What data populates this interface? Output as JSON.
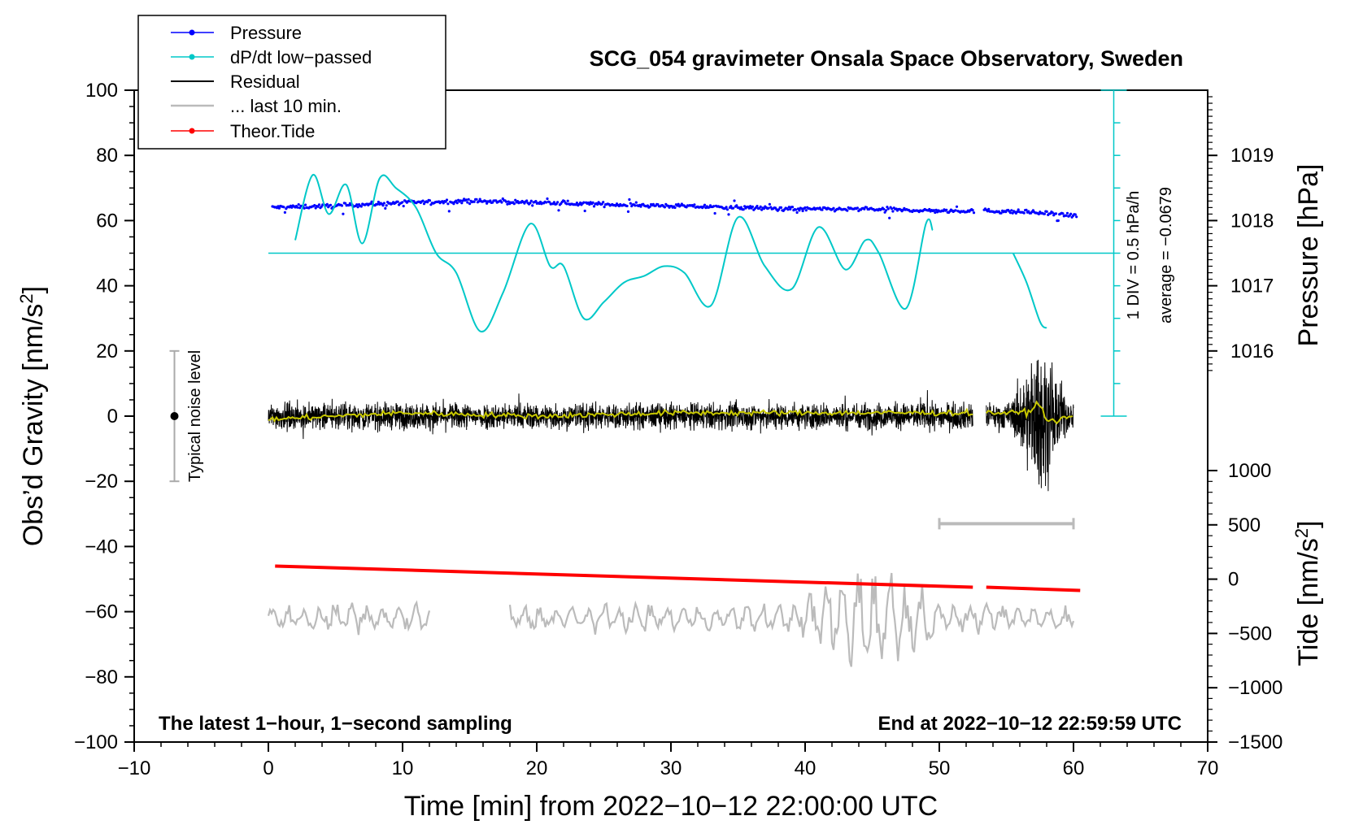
{
  "chart_data": {
    "type": "line",
    "title": "SCG_054 gravimeter Onsala Space Observatory, Sweden",
    "xlabel": "Time [min] from 2022−10−12 22:00:00 UTC",
    "ylabel_left": "Obs’d Gravity [nm/s2]",
    "ylabel_left_main": "Obs’d Gravity [nm/s",
    "ylabel_left_sup": "2",
    "ylabel_left_end": "]",
    "ylabel_right_pressure": "Pressure [hPa]",
    "ylabel_right_tide": "Tide [nm/s2]",
    "ylabel_right_tide_main": "Tide [nm/s",
    "ylabel_right_tide_sup": "2",
    "ylabel_right_tide_end": "]",
    "xlim": [
      -10,
      70
    ],
    "ylim": [
      -100,
      100
    ],
    "x_ticks": [
      "−10",
      "0",
      "10",
      "20",
      "30",
      "40",
      "50",
      "60",
      "70"
    ],
    "y_ticks": [
      "100",
      "80",
      "60",
      "40",
      "20",
      "0",
      "−20",
      "−40",
      "−60",
      "−80",
      "−100"
    ],
    "pressure_ticks": [
      "1019",
      "1018",
      "1017",
      "1016"
    ],
    "tide_ticks": [
      "1000",
      "500",
      "0",
      "−500",
      "−1000",
      "−1500"
    ],
    "legend": [
      {
        "label": "Pressure",
        "color": "#0000ff",
        "style": "line-dot"
      },
      {
        "label": "dP/dt low−passed",
        "color": "#00c8c8",
        "style": "line-dot"
      },
      {
        "label": "Residual",
        "color": "#000000",
        "style": "line"
      },
      {
        "label": "... last 10 min.",
        "color": "#bbbbbb",
        "style": "line"
      },
      {
        "label": "Theor.Tide",
        "color": "#ff0000",
        "style": "line-dot"
      }
    ],
    "annotations": {
      "bottom_left": "The latest 1−hour, 1−second sampling",
      "bottom_right": "End at 2022−10−12 22:59:59 UTC",
      "noise_label": "Typical noise level",
      "div_label": "1 DIV = 0.5 hPa/h",
      "average_label": "average = −0.0679"
    },
    "series": [
      {
        "name": "Pressure",
        "unit": "gravity-axis units",
        "x": [
          0,
          5,
          10,
          15,
          20,
          25,
          30,
          35,
          40,
          45,
          50,
          52.5,
          53.5,
          57,
          60
        ],
        "values": [
          64,
          64.5,
          65.5,
          66,
          65.5,
          65,
          64.5,
          64,
          63.5,
          63.5,
          63,
          63,
          63,
          62.5,
          61.5
        ]
      },
      {
        "name": "dP/dt low-passed",
        "unit": "gravity-axis units",
        "baseline": 50,
        "x": [
          2,
          3.3,
          4.5,
          5.8,
          7,
          8.3,
          9.5,
          11,
          12.5,
          14,
          15.8,
          17.5,
          19.5,
          21,
          22,
          23.5,
          25,
          26.5,
          28,
          29.5,
          31,
          33,
          35,
          37,
          39,
          41,
          43,
          44.5,
          45.5,
          47.5,
          49,
          49.5
        ],
        "values": [
          54,
          74,
          62,
          71,
          53,
          73,
          70,
          64,
          50,
          44,
          26,
          38,
          59,
          46,
          46,
          30,
          35,
          41,
          43,
          46,
          44,
          34,
          61,
          46,
          39,
          58,
          45,
          54,
          50,
          33,
          59,
          57
        ],
        "x2": [
          55.5,
          56.5,
          57.5,
          58
        ],
        "values2": [
          50,
          41,
          29,
          27
        ]
      },
      {
        "name": "Residual",
        "x_ranges": [
          [
            0,
            52.5
          ],
          [
            53.5,
            60
          ]
        ],
        "noise_amplitude": 8,
        "burst_center": 57.5,
        "burst_peak": 27,
        "burst_trough": -23
      },
      {
        "name": "Residual smoothed",
        "color": "#c8c800",
        "x": [
          0,
          10,
          20,
          30,
          40,
          50,
          52,
          53.5,
          56,
          57,
          58,
          60
        ],
        "values": [
          -1,
          1,
          0,
          1,
          1,
          1,
          1,
          1,
          1,
          4,
          -2,
          0
        ]
      },
      {
        "name": "... last 10 min.",
        "x_ranges": [
          [
            0,
            12
          ],
          [
            18,
            60
          ]
        ],
        "center": -62,
        "extremes": {
          "max": -37,
          "min": -86
        }
      },
      {
        "name": "Theor.Tide",
        "x": [
          0.5,
          52.5,
          53.5,
          60.5
        ],
        "values": [
          -46,
          -52.5,
          -52.5,
          -53.5
        ]
      }
    ],
    "noise_bar": {
      "x": -7,
      "center": 0,
      "low": -20,
      "high": 20
    },
    "scale_bar": {
      "x_start": 50,
      "x_end": 60,
      "y": -33
    },
    "dpdt_scale": {
      "x": 63,
      "top": 100,
      "bottom": 0,
      "divisions": 10
    }
  }
}
